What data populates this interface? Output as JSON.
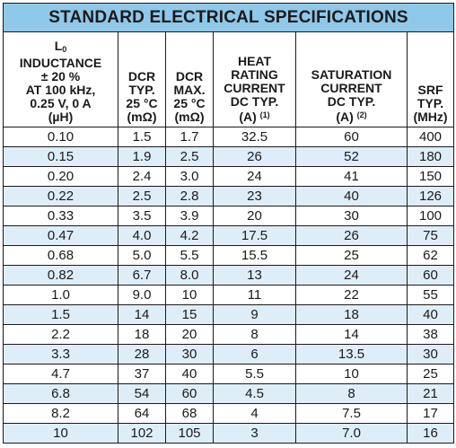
{
  "title": "STANDARD ELECTRICAL SPECIFICATIONS",
  "headers": [
    [
      "L",
      "0",
      "INDUCTANCE",
      "± 20 %",
      "AT 100 kHz,",
      "0.25 V, 0 A",
      "(µH)"
    ],
    [
      "DCR",
      "TYP.",
      "25 °C",
      "(mΩ)"
    ],
    [
      "DCR",
      "MAX.",
      "25 °C",
      "(mΩ)"
    ],
    [
      "HEAT",
      "RATING",
      "CURRENT",
      "DC TYP.",
      "(A)",
      "(1)"
    ],
    [
      "SATURATION",
      "CURRENT",
      "DC TYP.",
      "(A)",
      "(2)"
    ],
    [
      "SRF",
      "TYP.",
      "(MHz)"
    ]
  ],
  "rows": [
    [
      "0.10",
      "1.5",
      "1.7",
      "32.5",
      "60",
      "400"
    ],
    [
      "0.15",
      "1.9",
      "2.5",
      "26",
      "52",
      "180"
    ],
    [
      "0.20",
      "2.4",
      "3.0",
      "24",
      "41",
      "150"
    ],
    [
      "0.22",
      "2.5",
      "2.8",
      "23",
      "40",
      "126"
    ],
    [
      "0.33",
      "3.5",
      "3.9",
      "20",
      "30",
      "100"
    ],
    [
      "0.47",
      "4.0",
      "4.2",
      "17.5",
      "26",
      "75"
    ],
    [
      "0.68",
      "5.0",
      "5.5",
      "15.5",
      "25",
      "62"
    ],
    [
      "0.82",
      "6.7",
      "8.0",
      "13",
      "24",
      "60"
    ],
    [
      "1.0",
      "9.0",
      "10",
      "11",
      "22",
      "55"
    ],
    [
      "1.5",
      "14",
      "15",
      "9",
      "18",
      "40"
    ],
    [
      "2.2",
      "18",
      "20",
      "8",
      "14",
      "38"
    ],
    [
      "3.3",
      "28",
      "30",
      "6",
      "13.5",
      "30"
    ],
    [
      "4.7",
      "37",
      "40",
      "5.5",
      "10",
      "25"
    ],
    [
      "6.8",
      "54",
      "60",
      "4.5",
      "8",
      "21"
    ],
    [
      "8.2",
      "64",
      "68",
      "4",
      "7.5",
      "17"
    ],
    [
      "10",
      "102",
      "105",
      "3",
      "7.0",
      "16"
    ]
  ],
  "colors": {
    "title_background": "#8fc8e8",
    "stripe_background": "#ddeef8",
    "border": "#1a1a1a"
  }
}
